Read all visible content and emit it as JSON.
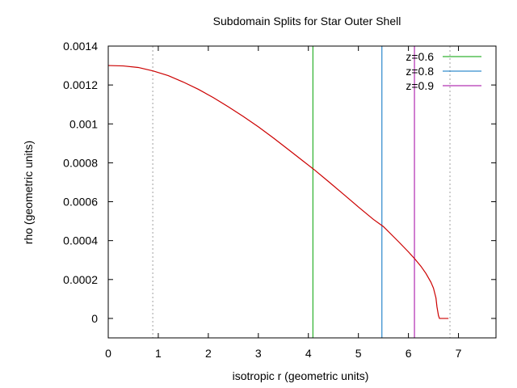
{
  "chart_data": {
    "type": "line",
    "title": "Subdomain Splits for Star Outer Shell",
    "xlabel": "isotropic r (geometric units)",
    "ylabel": "rho (geometric units)",
    "xlim": [
      0,
      7.75
    ],
    "ylim": [
      -0.0001,
      0.0014
    ],
    "x_ticks": [
      0,
      1,
      2,
      3,
      4,
      5,
      6,
      7
    ],
    "x_tick_labels": [
      "0",
      "1",
      "2",
      "3",
      "4",
      "5",
      "6",
      "7"
    ],
    "y_ticks": [
      0,
      0.0002,
      0.0004,
      0.0006,
      0.0008,
      0.001,
      0.0012,
      0.0014
    ],
    "y_tick_labels": [
      "0",
      "0.0002",
      "0.0004",
      "0.0006",
      "0.0008",
      "0.001",
      "0.0012",
      "0.0014"
    ],
    "grid": false,
    "legend_position": "top-right",
    "series": [
      {
        "color": "#cc0000",
        "x": [
          0,
          0.3,
          0.6,
          0.9,
          1.2,
          1.5,
          1.8,
          2.1,
          2.4,
          2.7,
          3.0,
          3.3,
          3.6,
          3.9,
          4.1,
          4.4,
          4.7,
          5.0,
          5.3,
          5.5,
          5.8,
          6.0,
          6.13,
          6.25,
          6.35,
          6.45,
          6.5,
          6.55,
          6.57,
          6.6,
          6.62,
          6.8
        ],
        "y": [
          0.0013,
          0.001298,
          0.00129,
          0.001272,
          0.001248,
          0.001215,
          0.001178,
          0.001135,
          0.001088,
          0.001038,
          0.000985,
          0.000928,
          0.000868,
          0.000808,
          0.000768,
          0.000704,
          0.000639,
          0.000573,
          0.000509,
          0.000472,
          0.000395,
          0.000342,
          0.000305,
          0.000268,
          0.000231,
          0.000186,
          0.000156,
          0.000105,
          6e-05,
          1.5e-05,
          0.0,
          0.0
        ]
      }
    ],
    "vertical_lines": [
      {
        "name": "z=0.6",
        "x": 4.09,
        "color": "#00a000"
      },
      {
        "name": "z=0.8",
        "x": 5.47,
        "color": "#0070c0"
      },
      {
        "name": "z=0.9",
        "x": 6.12,
        "color": "#a000a0"
      }
    ],
    "dotted_lines": [
      {
        "x": 0.89,
        "color": "#a0a0a0"
      },
      {
        "x": 6.83,
        "color": "#a0a0a0"
      }
    ]
  }
}
